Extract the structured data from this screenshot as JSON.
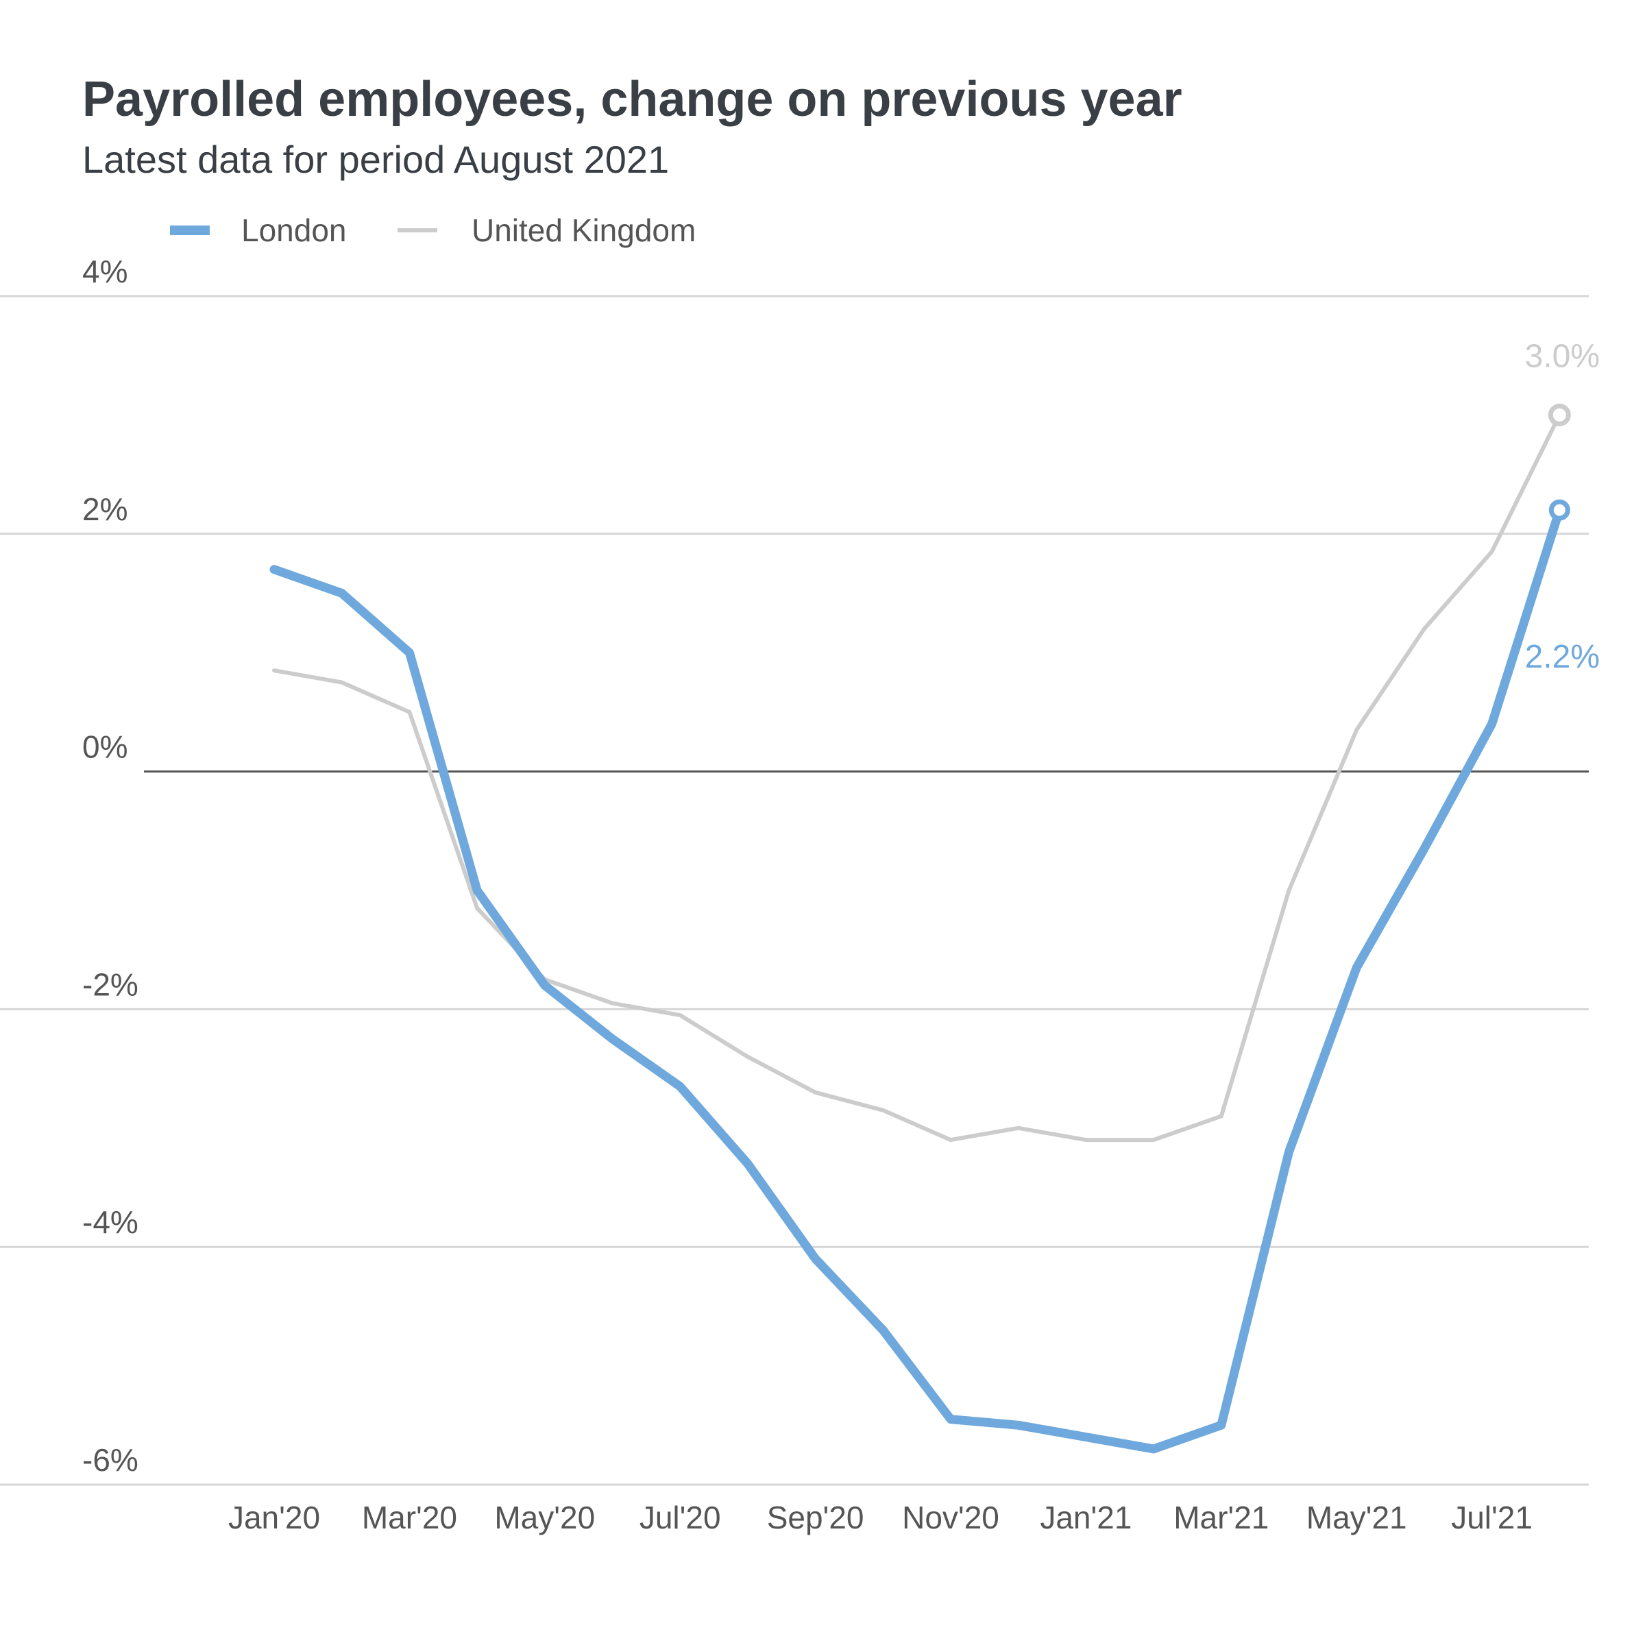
{
  "chart_data": {
    "type": "line",
    "title": "Payrolled employees, change on previous year",
    "subtitle": "Latest data for period August 2021",
    "xlabel": "",
    "ylabel": "",
    "ylim": [
      -6,
      4
    ],
    "y_ticks": [
      4,
      2,
      0,
      -2,
      -4,
      -6
    ],
    "y_tick_labels": [
      "4%",
      "2%",
      "0%",
      "-2%",
      "-4%",
      "-6%"
    ],
    "x_tick_labels": [
      "Jan'20",
      "Mar'20",
      "May'20",
      "Jul'20",
      "Sep'20",
      "Nov'20",
      "Jan'21",
      "Mar'21",
      "May'21",
      "Jul'21"
    ],
    "x": [
      "2020-01",
      "2020-02",
      "2020-03",
      "2020-04",
      "2020-05",
      "2020-06",
      "2020-07",
      "2020-08",
      "2020-09",
      "2020-10",
      "2020-11",
      "2020-12",
      "2021-01",
      "2021-02",
      "2021-03",
      "2021-04",
      "2021-05",
      "2021-06",
      "2021-07",
      "2021-08"
    ],
    "series": [
      {
        "name": "London",
        "color": "#6fa8dc",
        "values": [
          1.7,
          1.5,
          1.0,
          -1.0,
          -1.8,
          -2.25,
          -2.65,
          -3.3,
          -4.1,
          -4.7,
          -5.45,
          -5.5,
          -5.6,
          -5.7,
          -5.5,
          -3.2,
          -1.65,
          -0.65,
          0.4,
          2.2
        ],
        "end_label": "2.2%"
      },
      {
        "name": "United Kingdom",
        "color": "#cccccc",
        "values": [
          0.85,
          0.75,
          0.5,
          -1.15,
          -1.75,
          -1.95,
          -2.05,
          -2.4,
          -2.7,
          -2.85,
          -3.1,
          -3.0,
          -3.1,
          -3.1,
          -2.9,
          -1.0,
          0.35,
          1.2,
          1.85,
          3.0
        ],
        "end_label": "3.0%"
      }
    ],
    "legend_position": "top-left",
    "grid": true
  }
}
